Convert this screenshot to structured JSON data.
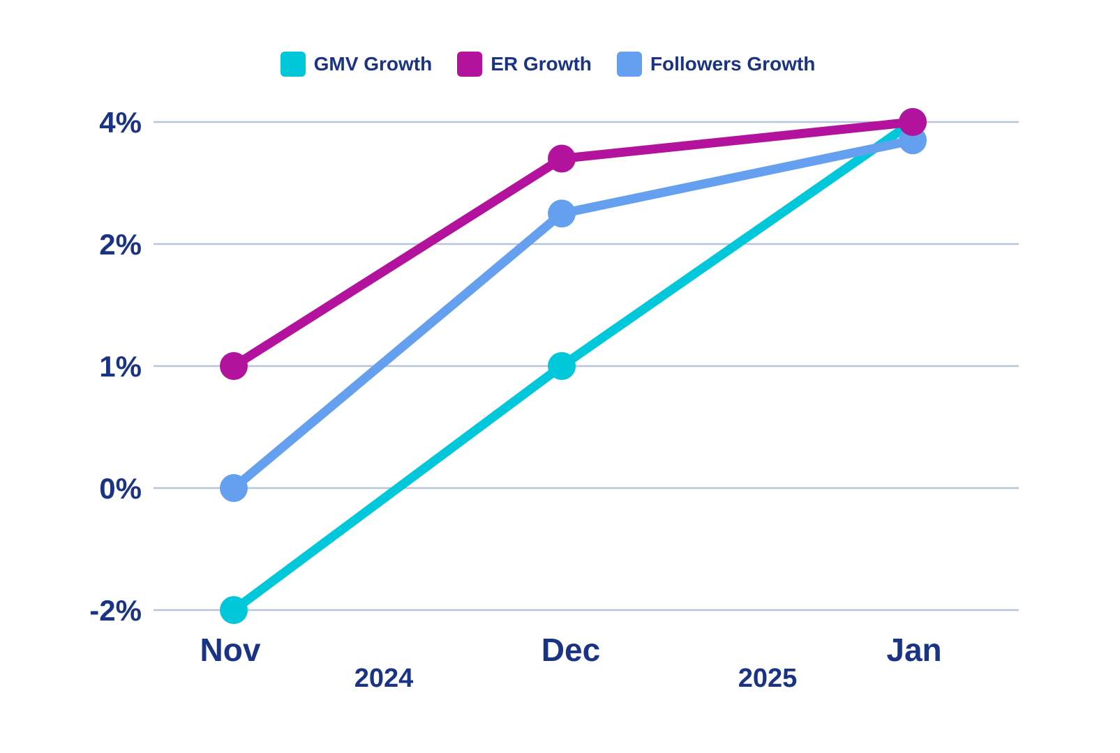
{
  "chart_data": {
    "type": "line",
    "categories": [
      "Nov",
      "Dec",
      "Jan"
    ],
    "y_ticks": [
      "-2%",
      "0%",
      "1%",
      "2%",
      "4%"
    ],
    "y_tick_values": [
      -2,
      0,
      1,
      2,
      4
    ],
    "year_labels": [
      {
        "label": "2024",
        "between": [
          "Nov",
          "Dec"
        ]
      },
      {
        "label": "2025",
        "between": [
          "Dec",
          "Jan"
        ]
      }
    ],
    "series": [
      {
        "name": "GMV Growth",
        "color": "#00c8da",
        "values": [
          -2,
          1,
          4
        ]
      },
      {
        "name": "ER Growth",
        "color": "#b3139c",
        "values": [
          1,
          3.4,
          4
        ]
      },
      {
        "name": "Followers Growth",
        "color": "#649ff0",
        "values": [
          0,
          2.5,
          3.7
        ]
      }
    ],
    "grid": true,
    "legend": "top-center",
    "title": "",
    "xlabel": "",
    "ylabel": ""
  },
  "colors": {
    "text": "#1a3384",
    "grid": "#b9c3dc"
  }
}
